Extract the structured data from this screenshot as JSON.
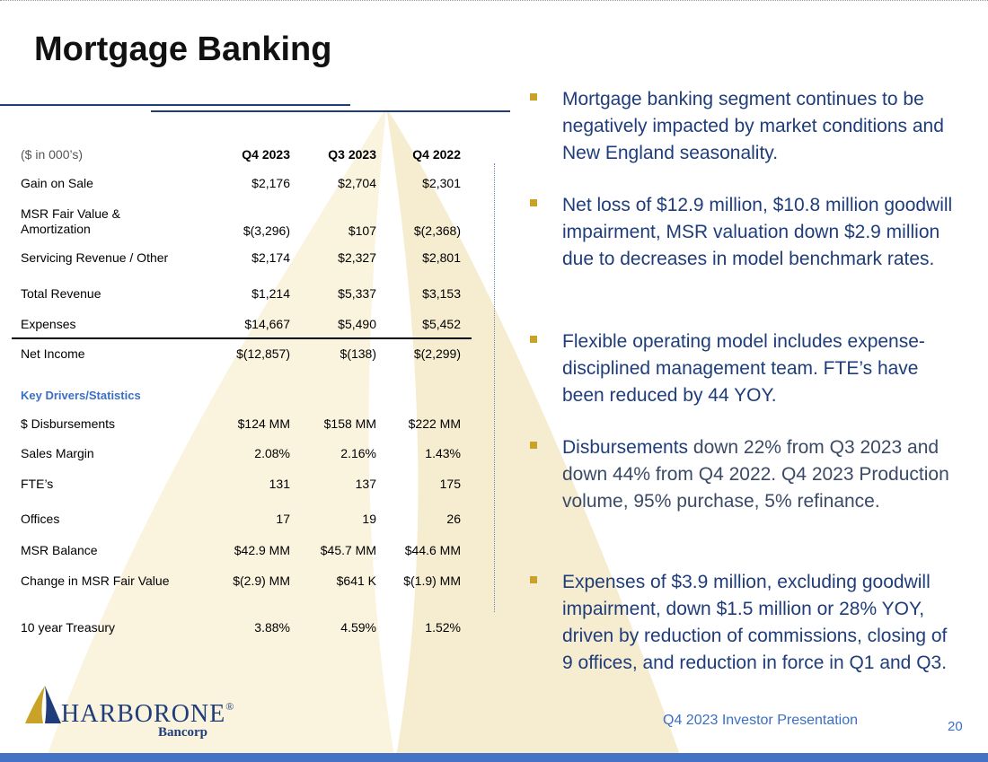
{
  "title": "Mortgage Banking",
  "table": {
    "unit_label": "($ in 000’s)",
    "columns": [
      "Q4 2023",
      "Q3 2023",
      "Q4 2022"
    ],
    "rows": [
      {
        "label_lines": [
          "Gain on Sale"
        ],
        "values": [
          "$2,176",
          "$2,704",
          "$2,301"
        ]
      },
      {
        "label_lines": [
          "MSR Fair Value &",
          "Amortization"
        ],
        "values": [
          "$(3,296)",
          "$107",
          "$(2,368)"
        ]
      },
      {
        "label_lines": [
          "Servicing Revenue / Other"
        ],
        "values": [
          "$2,174",
          "$2,327",
          "$2,801"
        ]
      },
      {
        "label_lines": [
          "Total Revenue"
        ],
        "values": [
          "$1,214",
          "$5,337",
          "$3,153"
        ]
      },
      {
        "label_lines": [
          "Expenses"
        ],
        "values": [
          "$14,667",
          "$5,490",
          "$5,452"
        ]
      },
      {
        "label_lines": [
          "Net Income"
        ],
        "values": [
          "$(12,857)",
          "$(138)",
          "$(2,299)"
        ]
      }
    ],
    "section_label": "Key Drivers/Statistics",
    "stats": [
      {
        "label": "$ Disbursements",
        "values": [
          "$124 MM",
          "$158 MM",
          "$222 MM"
        ]
      },
      {
        "label": "Sales Margin",
        "values": [
          "2.08%",
          "2.16%",
          "1.43%"
        ]
      },
      {
        "label": "FTE’s",
        "values": [
          "131",
          "137",
          "175"
        ]
      },
      {
        "label": "Offices",
        "values": [
          "17",
          "19",
          "26"
        ]
      },
      {
        "label": "MSR Balance",
        "values": [
          "$42.9 MM",
          "$45.7 MM",
          "$44.6 MM"
        ]
      },
      {
        "label": "Change in MSR Fair Value",
        "values": [
          "$(2.9) MM",
          "$641 K",
          "$(1.9) MM"
        ]
      },
      {
        "label": "10 year Treasury",
        "values": [
          "3.88%",
          "4.59%",
          "1.52%"
        ]
      }
    ]
  },
  "bullets": [
    {
      "parts": [
        "Mortgage banking segment continues to be negatively impacted by market conditions and New England seasonality."
      ]
    },
    {
      "parts": [
        "Net loss of $12.9 million, $10.8 million goodwill impairment, MSR valuation down $2.9 million due to decreases in model benchmark rates."
      ]
    },
    {
      "parts": [
        "Flexible operating model includes expense-disciplined management team. FTE’s have been reduced by 44 YOY."
      ]
    },
    {
      "parts": [
        "Disbursements",
        " down 22% from Q3 2023 and down 44% from Q4 2022. Q4 2023 Production volume, 95% purchase, 5% refinance."
      ]
    },
    {
      "parts": [
        "Expenses of $3.9 million, excluding goodwill impairment, down $1.5 million or 28% YOY, driven by reduction of commissions, closing of 9 offices, and reduction in force in Q1 and Q3."
      ]
    }
  ],
  "logo": {
    "name": "HARBORONE",
    "registered": "®",
    "sub": "Bancorp"
  },
  "footer": {
    "presentation": "Q4 2023 Investor Presentation",
    "page": "20"
  },
  "colors": {
    "navy": "#1f3d7a",
    "accent_gold": "#c9a227",
    "bar_blue": "#4472c4",
    "link_blue": "#3a6fc4"
  }
}
